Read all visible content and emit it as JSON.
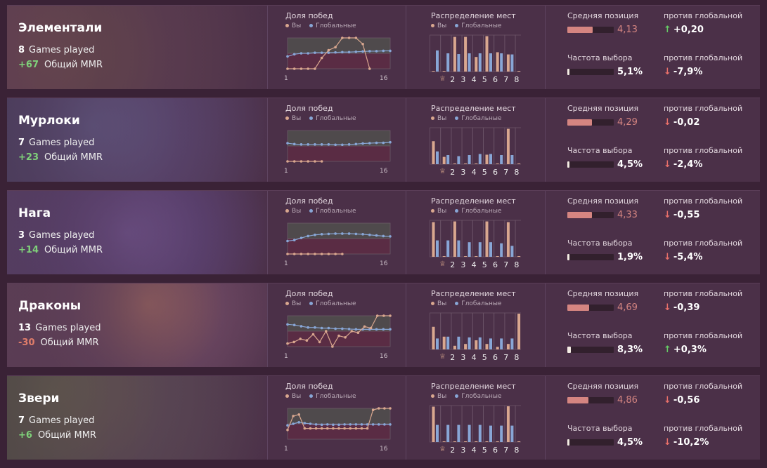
{
  "labels": {
    "winrate_title": "Доля побед",
    "dist_title": "Распределение мест",
    "legend_you": "Вы",
    "legend_global": "Глобальные",
    "games_played": "Games played",
    "mmr_label": "Общий MMR",
    "avg_pos": "Средняя позиция",
    "vs_global": "против глобальной",
    "pick_rate": "Частота выбора",
    "tick_start": "1",
    "tick_end": "16",
    "first_place_icon": "trophy-icon"
  },
  "colors": {
    "you": "#d9a78f",
    "global": "#88a6d6",
    "positive": "#7fd17a",
    "negative": "#e07d6a",
    "avg_bar": "#d58581"
  },
  "tribes": [
    {
      "name": "Элементали",
      "games": "8",
      "mmr": "+67",
      "mmr_sign": "pos",
      "avg_pos": "4,13",
      "avg_pos_value": 4.13,
      "avg_vs": "+0,20",
      "avg_vs_dir": "up",
      "pick_rate": "5,1%",
      "pick_rate_value": 5.1,
      "pick_vs": "-7,9%",
      "pick_vs_dir": "down",
      "winrate_you": [
        0,
        0,
        0,
        0,
        0,
        0.35,
        0.6,
        0.7,
        1.0,
        1.0,
        1.0,
        0.8,
        0
      ],
      "winrate_global": [
        0.4,
        0.47,
        0.5,
        0.5,
        0.52,
        0.52,
        0.52,
        0.53,
        0.54,
        0.54,
        0.55,
        0.56,
        0.57,
        0.57,
        0.58,
        0.58
      ],
      "dist_you": [
        0,
        0,
        0.95,
        0.95,
        0.4,
        0.97,
        0.53,
        0.47,
        0
      ],
      "dist_global": [
        0.58,
        0.5,
        0.48,
        0.5,
        0.5,
        0.5,
        0.5,
        0.47,
        0.47
      ]
    },
    {
      "name": "Мурлоки",
      "games": "7",
      "mmr": "+23",
      "mmr_sign": "pos",
      "avg_pos": "4,29",
      "avg_pos_value": 4.29,
      "avg_vs": "-0,02",
      "avg_vs_dir": "down",
      "pick_rate": "4,5%",
      "pick_rate_value": 4.5,
      "pick_vs": "-2,4%",
      "pick_vs_dir": "down",
      "winrate_you": [
        0,
        0,
        0,
        0,
        0,
        0
      ],
      "winrate_global": [
        0.59,
        0.56,
        0.55,
        0.55,
        0.55,
        0.55,
        0.55,
        0.54,
        0.54,
        0.55,
        0.56,
        0.58,
        0.59,
        0.6,
        0.6,
        0.62
      ],
      "dist_you": [
        0.63,
        0.2,
        0,
        0,
        0,
        0.26,
        0,
        0.97,
        0
      ],
      "dist_global": [
        0.35,
        0.25,
        0.22,
        0.25,
        0.28,
        0.28,
        0.25,
        0.25,
        0.22
      ]
    },
    {
      "name": "Нага",
      "games": "3",
      "mmr": "+14",
      "mmr_sign": "pos",
      "avg_pos": "4,33",
      "avg_pos_value": 4.33,
      "avg_vs": "-0,55",
      "avg_vs_dir": "down",
      "pick_rate": "1,9%",
      "pick_rate_value": 1.9,
      "pick_vs": "-5,4%",
      "pick_vs_dir": "down",
      "winrate_you": [
        0,
        0,
        0,
        0,
        0,
        0,
        0,
        0,
        0
      ],
      "winrate_global": [
        0.42,
        0.45,
        0.52,
        0.58,
        0.62,
        0.64,
        0.65,
        0.66,
        0.66,
        0.66,
        0.65,
        0.64,
        0.62,
        0.6,
        0.58,
        0.57
      ],
      "dist_you": [
        0.95,
        0,
        0.97,
        0,
        0,
        0.97,
        0,
        0.95,
        0
      ],
      "dist_global": [
        0.45,
        0.45,
        0.45,
        0.4,
        0.4,
        0.4,
        0.37,
        0.3,
        0.2
      ]
    },
    {
      "name": "Драконы",
      "games": "13",
      "mmr": "-30",
      "mmr_sign": "neg",
      "avg_pos": "4,69",
      "avg_pos_value": 4.69,
      "avg_vs": "-0,39",
      "avg_vs_dir": "down",
      "pick_rate": "8,3%",
      "pick_rate_value": 8.3,
      "pick_vs": "+0,3%",
      "pick_vs_dir": "up",
      "winrate_you": [
        0.1,
        0.15,
        0.25,
        0.2,
        0.4,
        0.15,
        0.5,
        0.0,
        0.35,
        0.3,
        0.5,
        0.45,
        0.65,
        0.6,
        1.0,
        1.0,
        1.0
      ],
      "winrate_global": [
        0.72,
        0.7,
        0.66,
        0.62,
        0.62,
        0.6,
        0.6,
        0.58,
        0.58,
        0.57,
        0.56,
        0.56,
        0.56,
        0.56,
        0.56,
        0.56
      ],
      "dist_you": [
        0.62,
        0.35,
        0.1,
        0.15,
        0.25,
        0.15,
        0.07,
        0.15,
        0.98
      ],
      "dist_global": [
        0.3,
        0.35,
        0.35,
        0.33,
        0.33,
        0.3,
        0.3,
        0.3,
        0.25
      ]
    },
    {
      "name": "Звери",
      "games": "7",
      "mmr": "+6",
      "mmr_sign": "pos",
      "avg_pos": "4,86",
      "avg_pos_value": 4.86,
      "avg_vs": "-0,56",
      "avg_vs_dir": "down",
      "pick_rate": "4,5%",
      "pick_rate_value": 4.5,
      "pick_vs": "-10,2%",
      "pick_vs_dir": "down",
      "winrate_you": [
        0.3,
        0.75,
        0.8,
        0.35,
        0.35,
        0.35,
        0.35,
        0.35,
        0.35,
        0.35,
        0.35,
        0.35,
        0.35,
        0.35,
        0.35,
        0.95,
        1.0,
        1.0,
        1.0
      ],
      "winrate_global": [
        0.45,
        0.5,
        0.55,
        0.52,
        0.5,
        0.48,
        0.47,
        0.48,
        0.47,
        0.47,
        0.48,
        0.48,
        0.48,
        0.48,
        0.48,
        0.48,
        0.48,
        0.48,
        0.48
      ],
      "dist_you": [
        0.97,
        0,
        0,
        0,
        0,
        0,
        0,
        0.98,
        0
      ],
      "dist_global": [
        0.47,
        0.47,
        0.47,
        0.47,
        0.47,
        0.45,
        0.45,
        0.45,
        0.27
      ]
    }
  ]
}
